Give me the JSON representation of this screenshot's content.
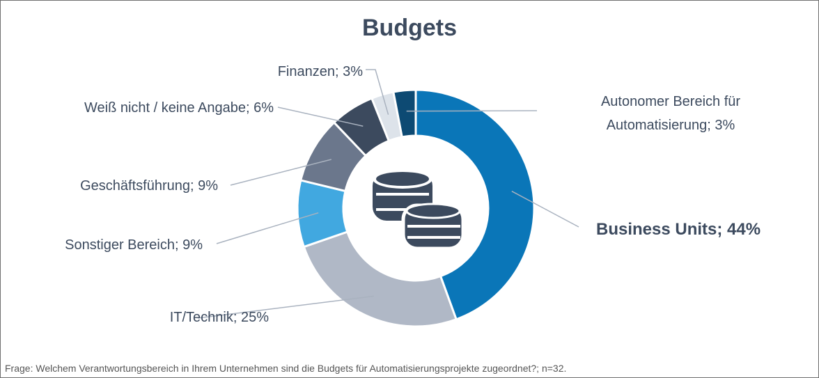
{
  "chart_data": {
    "type": "donut",
    "title": "Budgets",
    "values": [
      44,
      25,
      9,
      9,
      6,
      3,
      3
    ],
    "value_labels": [
      "Business Units; 44%",
      "IT/Technik; 25%",
      "Sonstiger Bereich; 9%",
      "Geschäftsführung; 9%",
      "Weiß nicht / keine Angabe; 6%",
      "Finanzen; 3%",
      "Autonomer Bereich für Automatisierung; 3%"
    ],
    "colors": [
      "#0a76b8",
      "#b0b8c6",
      "#41a8e0",
      "#6b778c",
      "#3c4a5e",
      "#dde3ea",
      "#0d4a73"
    ],
    "footnote": "Frage: Welchem Verantwortungsbereich in Ihrem Unternehmen sind die Budgets für Automatisierungsprojekte zugeordnet?; n=32."
  }
}
